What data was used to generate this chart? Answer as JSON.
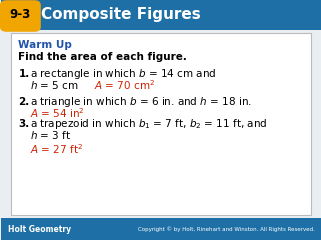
{
  "header_bg_color": "#1e6fa5",
  "header_label_bg": "#f0a500",
  "header_label_text": "9-3",
  "header_title": "Composite Figures",
  "header_text_color": "#ffffff",
  "body_bg": "#e8eef2",
  "content_box_bg": "#ffffff",
  "content_box_edge": "#bbbbbb",
  "warm_up_color": "#2255aa",
  "warm_up_text": "Warm Up",
  "subtitle_text": "Find the area of each figure.",
  "answer_color": "#cc2200",
  "footer_bg": "#1e6fa5",
  "footer_left": "Holt Geometry",
  "footer_right": "Copyright © by Holt, Rinehart and Winston. All Rights Reserved.",
  "footer_text_color": "#ffffff"
}
